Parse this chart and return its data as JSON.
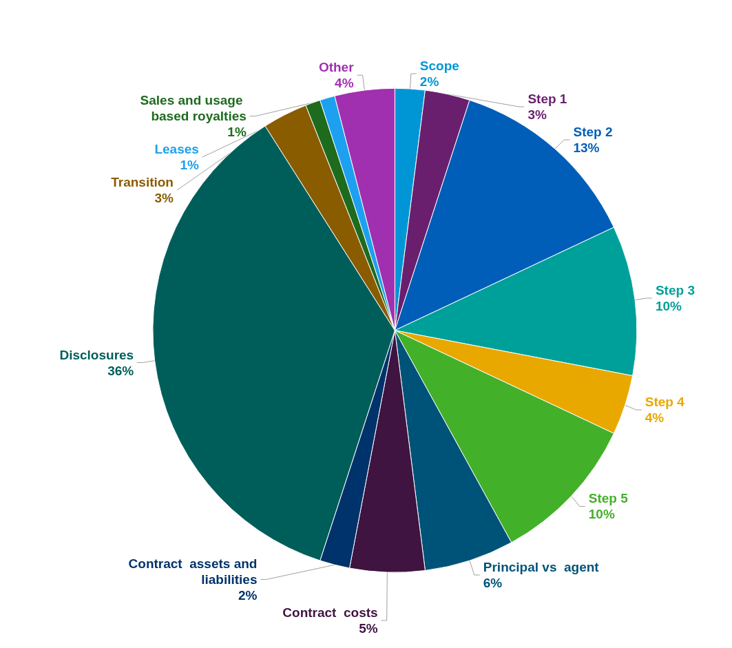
{
  "chart_data": {
    "type": "pie",
    "categories": [
      "Scope",
      "Step 1",
      "Step 2",
      "Step 3",
      "Step 4",
      "Step 5",
      "Principal vs  agent",
      "Contract  costs",
      "Contract  assets and liabilities",
      "Disclosures",
      "Transition",
      "Sales and usage based royalties",
      "Leases",
      "Other"
    ],
    "values": [
      2,
      3,
      13,
      10,
      4,
      10,
      6,
      5,
      2,
      36,
      3,
      1,
      1,
      4
    ],
    "colors": [
      "#0096d6",
      "#6a1f6e",
      "#005eb8",
      "#00a09a",
      "#e8a800",
      "#43b02a",
      "#005378",
      "#3f1440",
      "#00336b",
      "#005e5a",
      "#8a5c00",
      "#1e6b1e",
      "#1ea0f0",
      "#a030b0"
    ],
    "value_labels": [
      "2%",
      "3%",
      "13%",
      "10%",
      "4%",
      "10%",
      "6%",
      "5%",
      "2%",
      "36%",
      "3%",
      "1%",
      "1%",
      "4%"
    ],
    "legend": false
  }
}
